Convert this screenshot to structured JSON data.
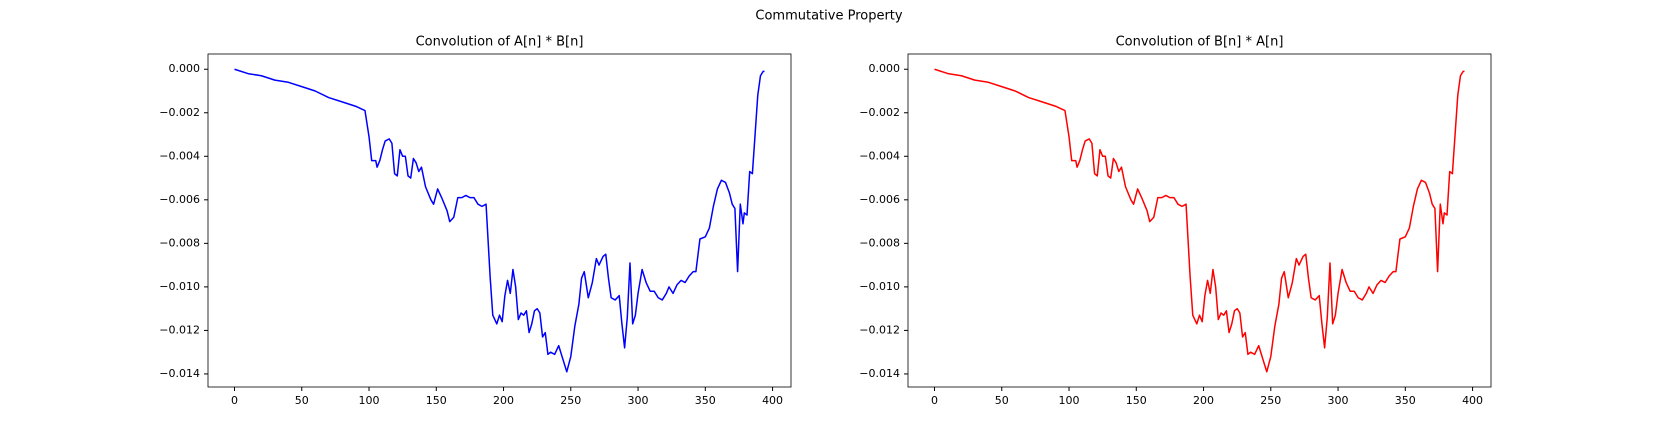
{
  "title": "Commutative Property",
  "chart_data": [
    {
      "type": "line",
      "title": "Convolution of A[n] * B[n]",
      "color": "#0000ff",
      "x": [
        0,
        10,
        20,
        30,
        40,
        50,
        60,
        70,
        80,
        90,
        97,
        100,
        102,
        105,
        106,
        108,
        110,
        112,
        115,
        117,
        119,
        121,
        123,
        125,
        127,
        129,
        131,
        133,
        135,
        137,
        139,
        142,
        146,
        148,
        151,
        154,
        158,
        160,
        163,
        166,
        169,
        172,
        175,
        178,
        181,
        184,
        187,
        190,
        192,
        195,
        197,
        199,
        201,
        203,
        205,
        207,
        209,
        211,
        213,
        215,
        217,
        219,
        221,
        223,
        225,
        227,
        229,
        231,
        233,
        235,
        238,
        241,
        244,
        247,
        250,
        253,
        256,
        258,
        260,
        263,
        266,
        269,
        271,
        274,
        276,
        278,
        280,
        283,
        286,
        288,
        290,
        292,
        294,
        296,
        298,
        300,
        303,
        306,
        309,
        312,
        315,
        318,
        321,
        323,
        326,
        329,
        332,
        335,
        338,
        341,
        343,
        346,
        350,
        353,
        356,
        359,
        362,
        365,
        368,
        370,
        372,
        374,
        376,
        378,
        379,
        381,
        383,
        385,
        387,
        389,
        391,
        393,
        394
      ],
      "values": [
        0,
        -0.0002,
        -0.0003,
        -0.0005,
        -0.0006,
        -0.0008,
        -0.001,
        -0.0013,
        -0.0015,
        -0.0017,
        -0.0019,
        -0.0031,
        -0.0042,
        -0.0042,
        -0.0045,
        -0.0042,
        -0.0037,
        -0.0033,
        -0.0032,
        -0.0034,
        -0.0048,
        -0.0049,
        -0.0037,
        -0.004,
        -0.004,
        -0.0049,
        -0.005,
        -0.0041,
        -0.0043,
        -0.0047,
        -0.0045,
        -0.0054,
        -0.006,
        -0.0062,
        -0.0055,
        -0.0059,
        -0.0065,
        -0.007,
        -0.0068,
        -0.0059,
        -0.0059,
        -0.0058,
        -0.0059,
        -0.0059,
        -0.0062,
        -0.0063,
        -0.0062,
        -0.0095,
        -0.0113,
        -0.0117,
        -0.0113,
        -0.0116,
        -0.0104,
        -0.0097,
        -0.0103,
        -0.0092,
        -0.01,
        -0.0115,
        -0.0112,
        -0.0113,
        -0.0111,
        -0.0121,
        -0.0117,
        -0.0111,
        -0.011,
        -0.0112,
        -0.0123,
        -0.0121,
        -0.0131,
        -0.013,
        -0.0131,
        -0.0127,
        -0.0133,
        -0.0139,
        -0.0132,
        -0.0118,
        -0.0108,
        -0.0096,
        -0.0093,
        -0.0105,
        -0.0098,
        -0.0087,
        -0.009,
        -0.0086,
        -0.0085,
        -0.0096,
        -0.0105,
        -0.0106,
        -0.0104,
        -0.0117,
        -0.0128,
        -0.0114,
        -0.0089,
        -0.0117,
        -0.0113,
        -0.0103,
        -0.0092,
        -0.0098,
        -0.0102,
        -0.0102,
        -0.0105,
        -0.0106,
        -0.0103,
        -0.01,
        -0.0103,
        -0.0099,
        -0.0097,
        -0.0098,
        -0.0095,
        -0.0093,
        -0.0093,
        -0.0078,
        -0.0077,
        -0.0073,
        -0.0063,
        -0.0055,
        -0.0051,
        -0.0052,
        -0.0057,
        -0.0062,
        -0.0064,
        -0.0093,
        -0.0062,
        -0.0071,
        -0.0066,
        -0.0067,
        -0.0047,
        -0.0048,
        -0.003,
        -0.0012,
        -0.0003,
        -0.0001,
        -0.0001
      ],
      "xlim": [
        -19.7,
        413.7
      ],
      "xticks": [
        0,
        50,
        100,
        150,
        200,
        250,
        300,
        350,
        400
      ],
      "ylim": [
        -0.0146,
        0.0007
      ],
      "yticks": [
        {
          "value": -0.014,
          "label": "−0.014"
        },
        {
          "value": -0.012,
          "label": "−0.012"
        },
        {
          "value": -0.01,
          "label": "−0.010"
        },
        {
          "value": -0.008,
          "label": "−0.008"
        },
        {
          "value": -0.006,
          "label": "−0.006"
        },
        {
          "value": -0.004,
          "label": "−0.004"
        },
        {
          "value": -0.002,
          "label": "−0.002"
        },
        {
          "value": 0,
          "label": "0.000"
        }
      ]
    },
    {
      "type": "line",
      "title": "Convolution of B[n] * A[n]",
      "color": "#ff0000",
      "x": [
        0,
        10,
        20,
        30,
        40,
        50,
        60,
        70,
        80,
        90,
        97,
        100,
        102,
        105,
        106,
        108,
        110,
        112,
        115,
        117,
        119,
        121,
        123,
        125,
        127,
        129,
        131,
        133,
        135,
        137,
        139,
        142,
        146,
        148,
        151,
        154,
        158,
        160,
        163,
        166,
        169,
        172,
        175,
        178,
        181,
        184,
        187,
        190,
        192,
        195,
        197,
        199,
        201,
        203,
        205,
        207,
        209,
        211,
        213,
        215,
        217,
        219,
        221,
        223,
        225,
        227,
        229,
        231,
        233,
        235,
        238,
        241,
        244,
        247,
        250,
        253,
        256,
        258,
        260,
        263,
        266,
        269,
        271,
        274,
        276,
        278,
        280,
        283,
        286,
        288,
        290,
        292,
        294,
        296,
        298,
        300,
        303,
        306,
        309,
        312,
        315,
        318,
        321,
        323,
        326,
        329,
        332,
        335,
        338,
        341,
        343,
        346,
        350,
        353,
        356,
        359,
        362,
        365,
        368,
        370,
        372,
        374,
        376,
        378,
        379,
        381,
        383,
        385,
        387,
        389,
        391,
        393,
        394
      ],
      "values": [
        0,
        -0.0002,
        -0.0003,
        -0.0005,
        -0.0006,
        -0.0008,
        -0.001,
        -0.0013,
        -0.0015,
        -0.0017,
        -0.0019,
        -0.0031,
        -0.0042,
        -0.0042,
        -0.0045,
        -0.0042,
        -0.0037,
        -0.0033,
        -0.0032,
        -0.0034,
        -0.0048,
        -0.0049,
        -0.0037,
        -0.004,
        -0.004,
        -0.0049,
        -0.005,
        -0.0041,
        -0.0043,
        -0.0047,
        -0.0045,
        -0.0054,
        -0.006,
        -0.0062,
        -0.0055,
        -0.0059,
        -0.0065,
        -0.007,
        -0.0068,
        -0.0059,
        -0.0059,
        -0.0058,
        -0.0059,
        -0.0059,
        -0.0062,
        -0.0063,
        -0.0062,
        -0.0095,
        -0.0113,
        -0.0117,
        -0.0113,
        -0.0116,
        -0.0104,
        -0.0097,
        -0.0103,
        -0.0092,
        -0.01,
        -0.0115,
        -0.0112,
        -0.0113,
        -0.0111,
        -0.0121,
        -0.0117,
        -0.0111,
        -0.011,
        -0.0112,
        -0.0123,
        -0.0121,
        -0.0131,
        -0.013,
        -0.0131,
        -0.0127,
        -0.0133,
        -0.0139,
        -0.0132,
        -0.0118,
        -0.0108,
        -0.0096,
        -0.0093,
        -0.0105,
        -0.0098,
        -0.0087,
        -0.009,
        -0.0086,
        -0.0085,
        -0.0096,
        -0.0105,
        -0.0106,
        -0.0104,
        -0.0117,
        -0.0128,
        -0.0114,
        -0.0089,
        -0.0117,
        -0.0113,
        -0.0103,
        -0.0092,
        -0.0098,
        -0.0102,
        -0.0102,
        -0.0105,
        -0.0106,
        -0.0103,
        -0.01,
        -0.0103,
        -0.0099,
        -0.0097,
        -0.0098,
        -0.0095,
        -0.0093,
        -0.0093,
        -0.0078,
        -0.0077,
        -0.0073,
        -0.0063,
        -0.0055,
        -0.0051,
        -0.0052,
        -0.0057,
        -0.0062,
        -0.0064,
        -0.0093,
        -0.0062,
        -0.0071,
        -0.0066,
        -0.0067,
        -0.0047,
        -0.0048,
        -0.003,
        -0.0012,
        -0.0003,
        -0.0001,
        -0.0001
      ],
      "xlim": [
        -19.7,
        413.7
      ],
      "xticks": [
        0,
        50,
        100,
        150,
        200,
        250,
        300,
        350,
        400
      ],
      "ylim": [
        -0.0146,
        0.0007
      ],
      "yticks": [
        {
          "value": -0.014,
          "label": "−0.014"
        },
        {
          "value": -0.012,
          "label": "−0.012"
        },
        {
          "value": -0.01,
          "label": "−0.010"
        },
        {
          "value": -0.008,
          "label": "−0.008"
        },
        {
          "value": -0.006,
          "label": "−0.006"
        },
        {
          "value": -0.004,
          "label": "−0.004"
        },
        {
          "value": -0.002,
          "label": "−0.002"
        },
        {
          "value": 0,
          "label": "0.000"
        }
      ]
    }
  ]
}
